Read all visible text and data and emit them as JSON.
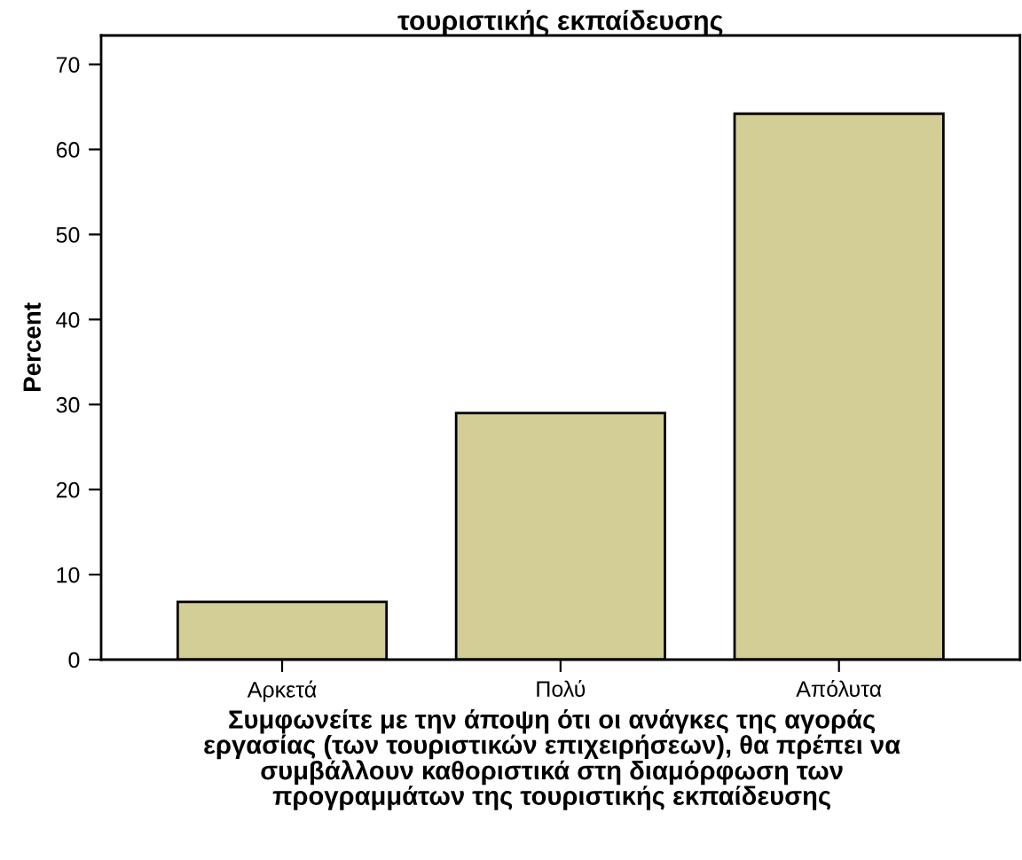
{
  "chart_data": {
    "type": "bar",
    "title": "τουριστικής εκπαίδευσης",
    "categories": [
      "Αρκετά",
      "Πολύ",
      "Απόλυτα"
    ],
    "values": [
      6.8,
      29.0,
      64.2
    ],
    "color": "#d3cd96",
    "xlabel": "Συμφωνείτε με την άποψη ότι οι ανάγκες της αγοράς\nεργασίας (των τουριστικών επιχειρήσεων), θα πρέπει να\nσυμβάλλουν καθοριστικά στη διαμόρφωση των\nπρογραμμάτων της τουριστικής εκπαίδευσης",
    "ylabel": "Percent",
    "ylim": [
      0,
      73.4
    ],
    "yticks": [
      0,
      10,
      20,
      30,
      40,
      50,
      60,
      70
    ],
    "grid": false
  }
}
